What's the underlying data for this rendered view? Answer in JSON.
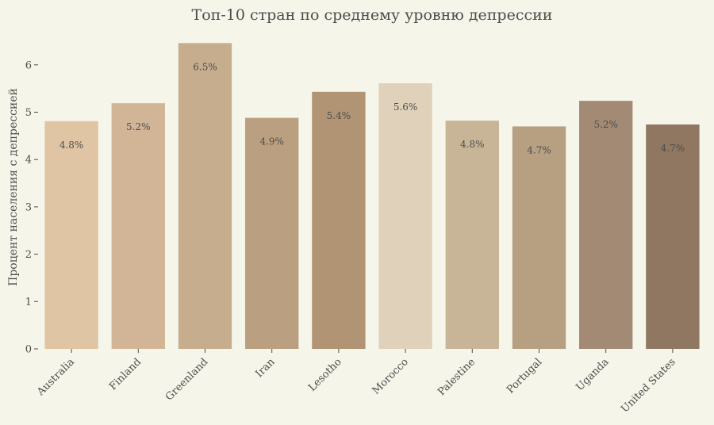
{
  "chart_data": {
    "type": "bar",
    "title": "Топ-10 стран по среднему уровню депрессии",
    "xlabel": "",
    "ylabel": "Процент населения с депрессией",
    "ylim": [
      0,
      6.7
    ],
    "yticks": [
      0,
      1,
      2,
      3,
      4,
      5,
      6
    ],
    "grid": false,
    "categories": [
      "Australia",
      "Finland",
      "Greenland",
      "Iran",
      "Lesotho",
      "Morocco",
      "Palestine",
      "Portugal",
      "Uganda",
      "United States"
    ],
    "values": [
      4.81,
      5.19,
      6.46,
      4.88,
      5.43,
      5.61,
      4.82,
      4.7,
      5.24,
      4.74
    ],
    "value_labels": [
      "4.8%",
      "5.2%",
      "6.5%",
      "4.9%",
      "5.4%",
      "5.6%",
      "4.8%",
      "4.7%",
      "5.2%",
      "4.7%"
    ],
    "colors": [
      "#dfc5a3",
      "#d2b597",
      "#c6ad8e",
      "#baa080",
      "#b09474",
      "#e0d1bb",
      "#c8b497",
      "#b79f82",
      "#a38a74",
      "#8f7761"
    ]
  }
}
